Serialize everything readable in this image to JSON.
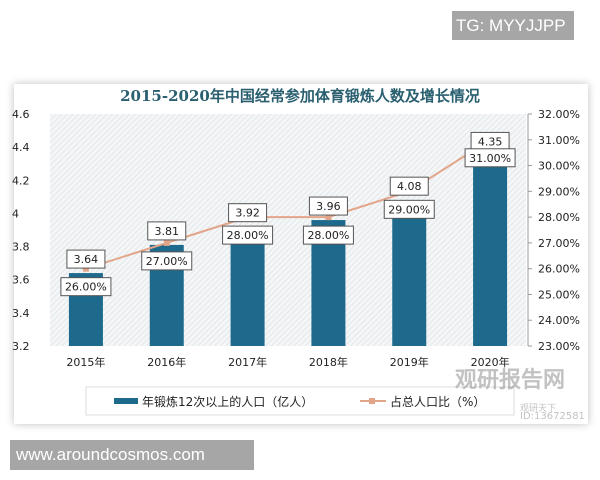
{
  "watermark_tag": "TG: MYYJJPP",
  "site_tag": "www.aroundcosmos.com",
  "logo_watermark": {
    "name": "观研报告网",
    "sub": "观研天下",
    "id": "ID:13672581"
  },
  "chart_data": {
    "type": "bar+line",
    "title": "2015-2020年中国经常参加体育锻炼人数及增长情况",
    "categories": [
      "2015年",
      "2016年",
      "2017年",
      "2018年",
      "2019年",
      "2020年"
    ],
    "series": [
      {
        "name": "年锻炼12次以上的人口（亿人）",
        "type": "bar",
        "axis": "left",
        "values": [
          3.64,
          3.81,
          3.92,
          3.96,
          4.08,
          4.35
        ],
        "labels": [
          "3.64",
          "3.81",
          "3.92",
          "3.96",
          "4.08",
          "4.35"
        ],
        "color": "#1d6a8c"
      },
      {
        "name": "占总人口比（%）",
        "type": "line",
        "axis": "right",
        "values": [
          26,
          27,
          28,
          28,
          29,
          31
        ],
        "labels": [
          "26.00%",
          "27.00%",
          "28.00%",
          "28.00%",
          "29.00%",
          "31.00%"
        ],
        "color": "#e3a58a"
      }
    ],
    "left_axis": {
      "ylim": [
        3.2,
        4.6
      ],
      "ticks": [
        "3.2",
        "3.4",
        "3.6",
        "3.8",
        "4",
        "4.2",
        "4.4",
        "4.6"
      ]
    },
    "right_axis": {
      "ylim": [
        23,
        32
      ],
      "ticks": [
        "23.00%",
        "24.00%",
        "25.00%",
        "26.00%",
        "27.00%",
        "28.00%",
        "29.00%",
        "30.00%",
        "31.00%",
        "32.00%"
      ]
    },
    "grid": false,
    "legend_position": "bottom"
  }
}
